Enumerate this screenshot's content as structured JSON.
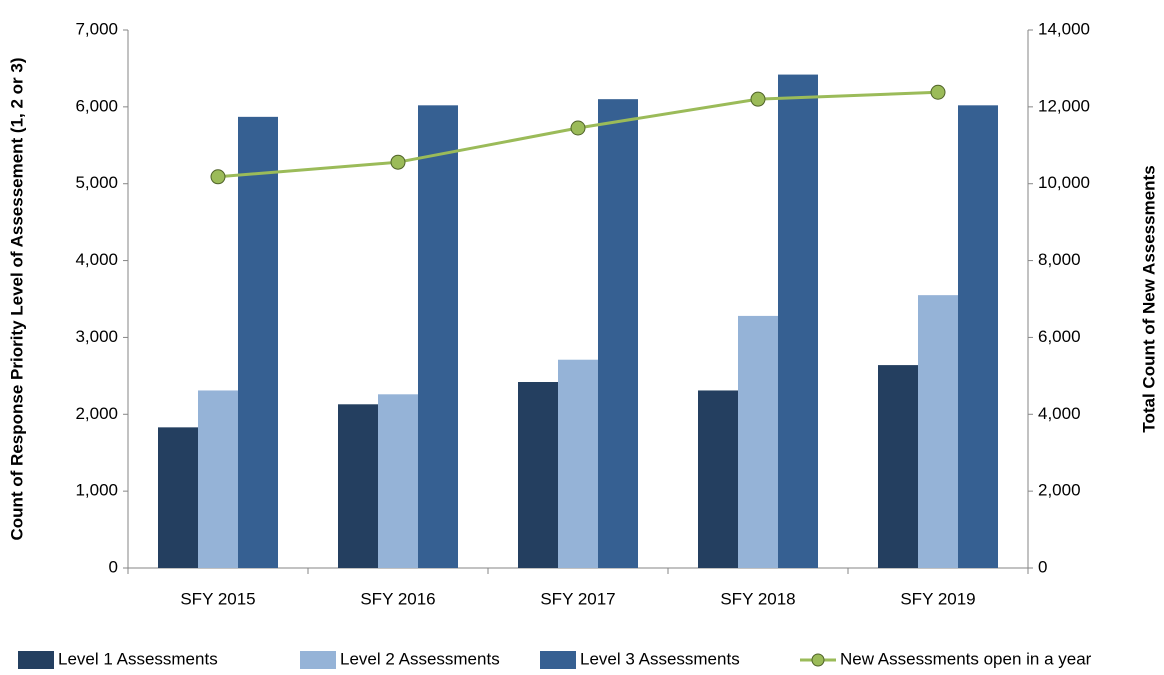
{
  "chart_data": {
    "type": "bar",
    "categories": [
      "SFY 2015",
      "SFY 2016",
      "SFY 2017",
      "SFY 2018",
      "SFY 2019"
    ],
    "series": [
      {
        "name": "Level 1 Assessments",
        "color": "#243f60",
        "values": [
          1830,
          2130,
          2420,
          2310,
          2640
        ]
      },
      {
        "name": "Level 2 Assessments",
        "color": "#95b3d7",
        "values": [
          2310,
          2260,
          2710,
          3280,
          3550
        ]
      },
      {
        "name": "Level 3 Assessments",
        "color": "#366092",
        "values": [
          5870,
          6020,
          6100,
          6420,
          6020
        ]
      },
      {
        "name": "New Assessments open in a year",
        "color": "#9bbb59",
        "type": "line",
        "axis": "y2",
        "values": [
          10180,
          10560,
          11450,
          12200,
          12380
        ]
      }
    ],
    "ylabel": "Count of Response Priority Level of Assessement (1, 2 or 3)",
    "y2label": "Total Count of New Assessments",
    "ylim": [
      0,
      7000
    ],
    "yticks": [
      0,
      {
        "value": 1000,
        "label": "1,000"
      },
      {
        "value": 2000,
        "label": "2,000"
      },
      {
        "value": 3000,
        "label": "3,000"
      },
      {
        "value": 4000,
        "label": "4,000"
      },
      {
        "value": 5000,
        "label": "5,000"
      },
      {
        "value": 6000,
        "label": "6,000"
      },
      {
        "value": 7000,
        "label": "7,000"
      }
    ],
    "y2lim": [
      0,
      14000
    ],
    "y2ticks": [
      0,
      {
        "value": 2000,
        "label": "2,000"
      },
      {
        "value": 4000,
        "label": "4,000"
      },
      {
        "value": 6000,
        "label": "6,000"
      },
      {
        "value": 8000,
        "label": "8,000"
      },
      {
        "value": 10000,
        "label": "10,000"
      },
      {
        "value": 12000,
        "label": "12,000"
      },
      {
        "value": 14000,
        "label": "14,000"
      }
    ],
    "grid": false,
    "legend": "bottom"
  }
}
